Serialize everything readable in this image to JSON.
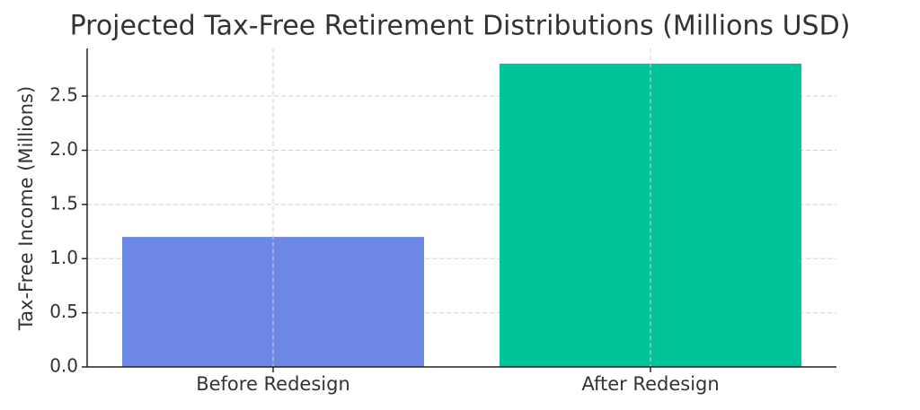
{
  "chart_data": {
    "type": "bar",
    "title": "Projected Tax-Free Retirement Distributions (Millions USD)",
    "y_label": "Tax-Free Income (Millions)",
    "categories": [
      "Before Redesign",
      "After Redesign"
    ],
    "values": [
      1.2,
      2.8
    ],
    "colors": [
      "#6c88e4",
      "#00c49a"
    ],
    "ylim": [
      0,
      2.94
    ],
    "yticks": [
      {
        "value": 0,
        "label": "0.0"
      },
      0.5,
      {
        "value": 1,
        "label": "1.0"
      },
      1.5,
      {
        "value": 2,
        "label": "2.0"
      },
      2.5
    ],
    "grid": true
  }
}
